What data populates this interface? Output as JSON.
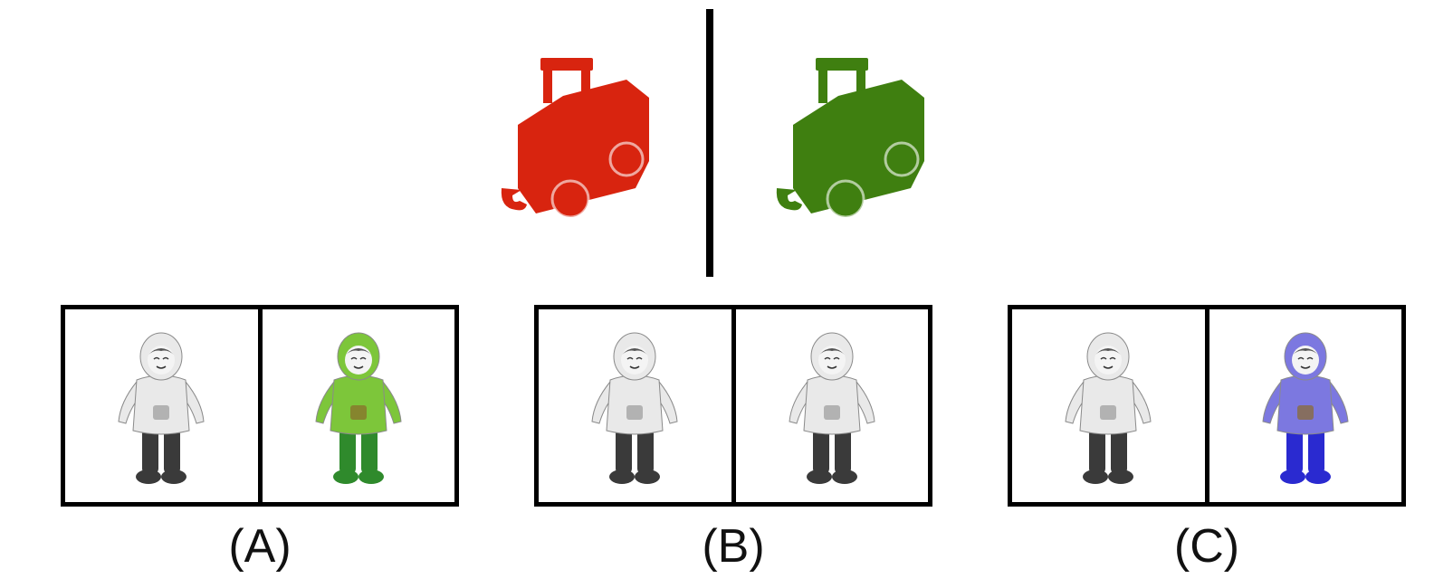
{
  "reference": {
    "left_icon": "caboose-train-icon",
    "left_color": "#d8240f",
    "right_icon": "caboose-train-icon",
    "right_color": "#3f7f10"
  },
  "options": [
    {
      "label": "(A)",
      "left_tint": "#e9e9e9",
      "right_tint": "#7dc63a",
      "right_pants": "#2f8a2c"
    },
    {
      "label": "(B)",
      "left_tint": "#e9e9e9",
      "right_tint": "#e9e9e9",
      "right_pants": "#3a3a3a"
    },
    {
      "label": "(C)",
      "left_tint": "#e9e9e9",
      "right_tint": "#7c78e0",
      "right_pants": "#2a2ad0"
    }
  ]
}
